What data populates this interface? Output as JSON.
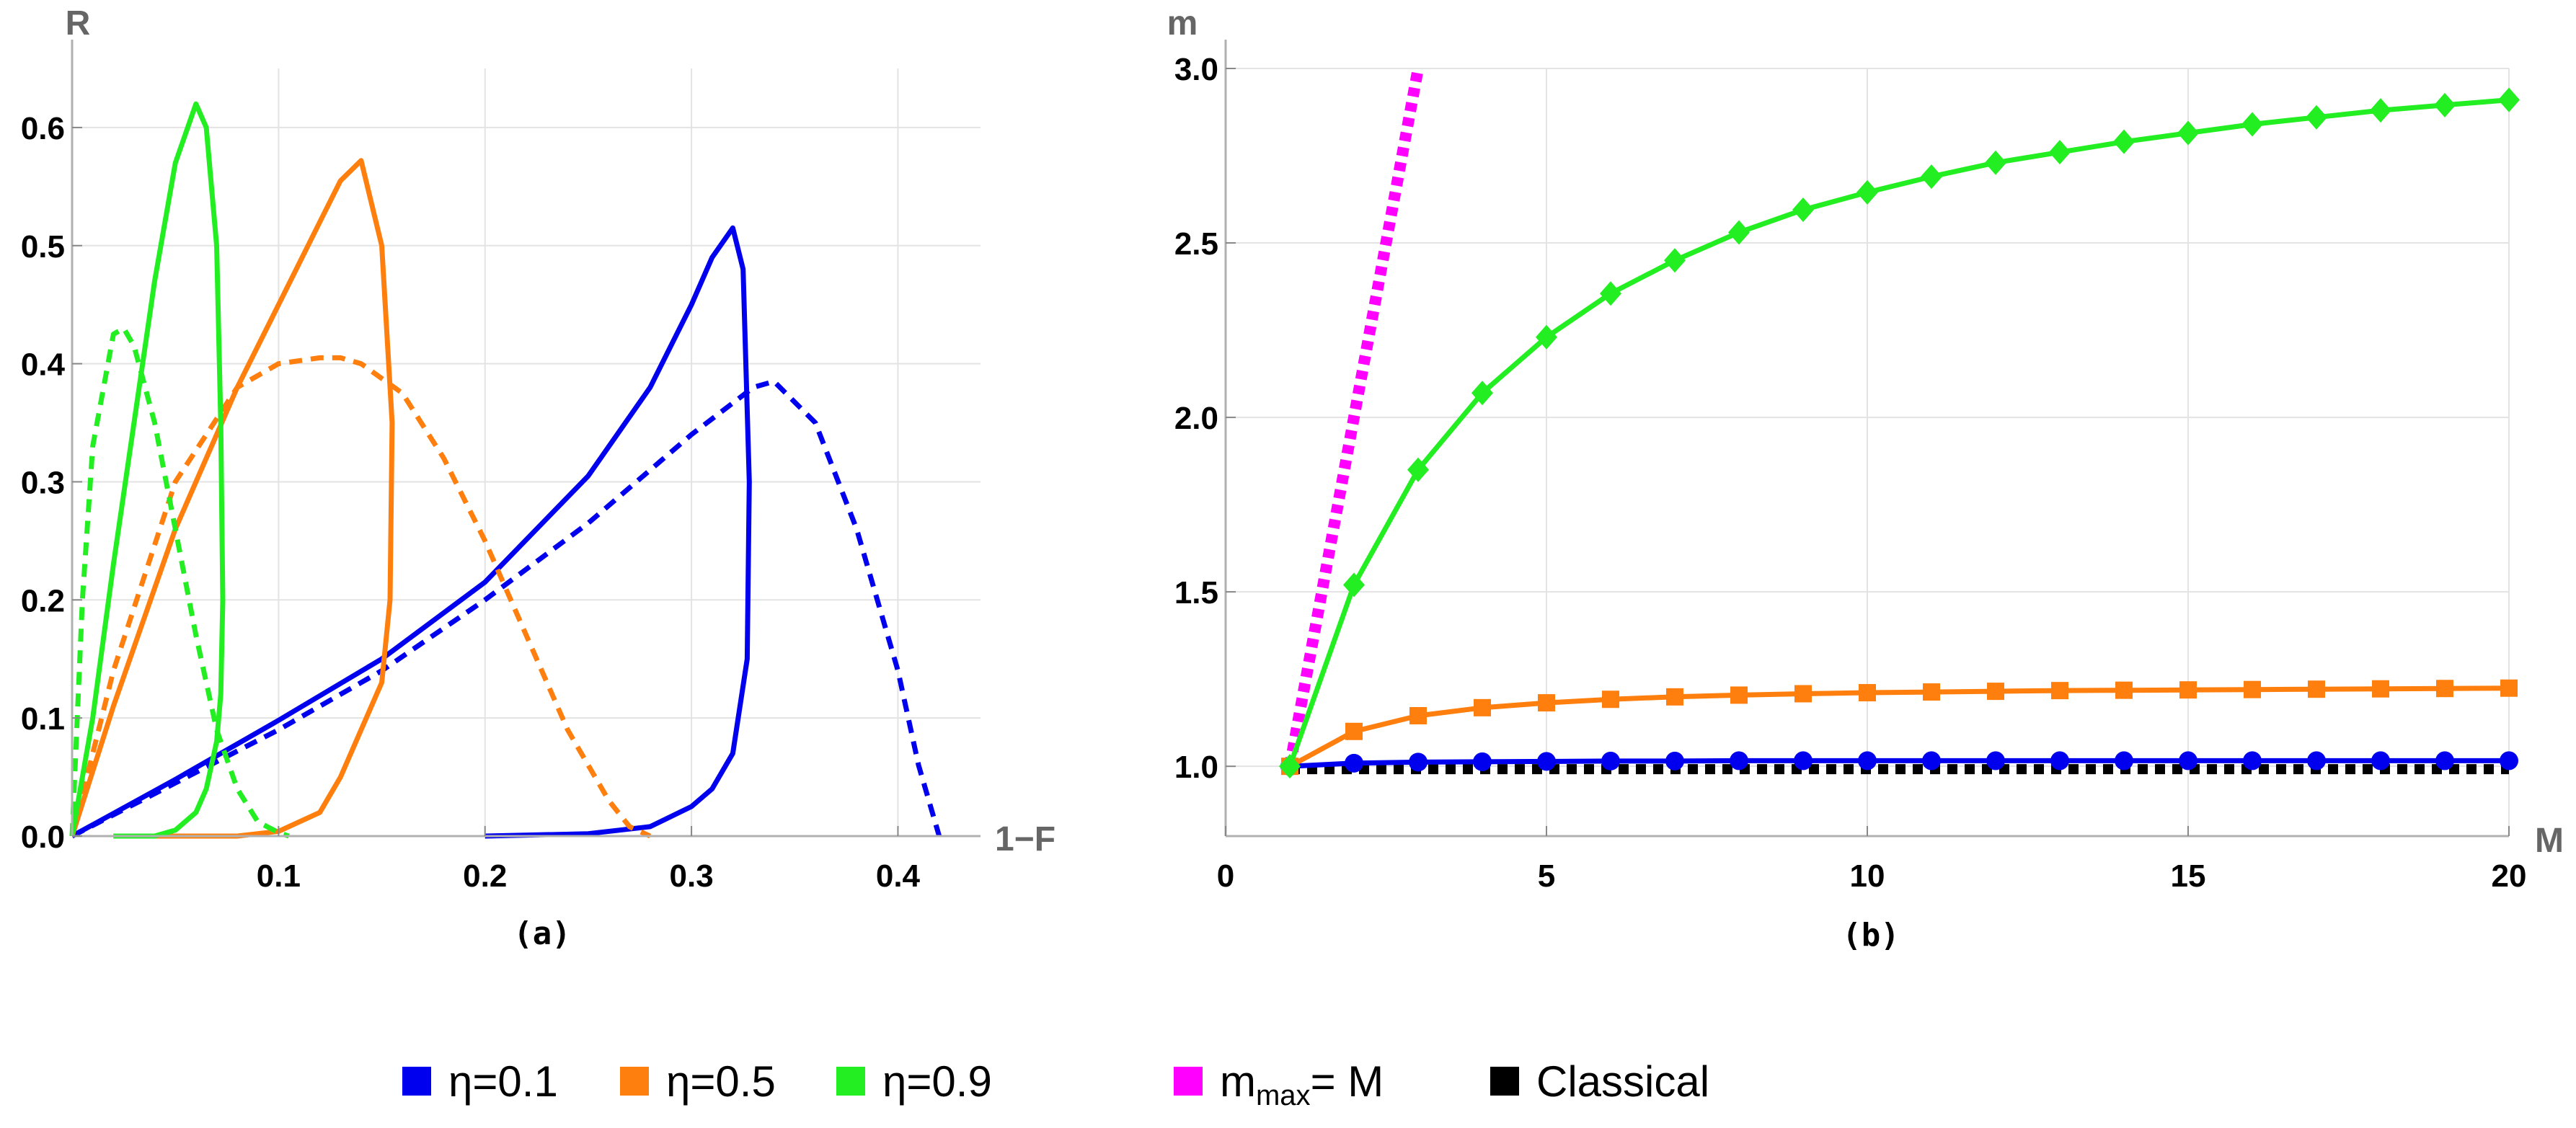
{
  "chart_data": [
    {
      "type": "line",
      "panel": "(a)",
      "xlabel": "1−F",
      "ylabel": "R",
      "xlim": [
        0,
        0.44
      ],
      "ylim": [
        0,
        0.65
      ],
      "xticks": [
        "0.1",
        "0.2",
        "0.3",
        "0.4"
      ],
      "xtick_values": [
        0.1,
        0.2,
        0.3,
        0.4
      ],
      "yticks": [
        "0.0",
        "0.1",
        "0.2",
        "0.3",
        "0.4",
        "0.5",
        "0.6"
      ],
      "ytick_values": [
        0,
        0.1,
        0.2,
        0.3,
        0.4,
        0.5,
        0.6
      ],
      "grid": true,
      "series": [
        {
          "name": "η=0.1 (solid)",
          "color": "#0000ee",
          "style": "solid",
          "x": [
            0,
            0.05,
            0.1,
            0.15,
            0.2,
            0.25,
            0.28,
            0.3,
            0.31,
            0.32,
            0.325,
            0.328,
            0.327,
            0.32,
            0.31,
            0.3,
            0.28,
            0.25,
            0.2
          ],
          "y": [
            0,
            0.048,
            0.098,
            0.15,
            0.215,
            0.305,
            0.38,
            0.45,
            0.49,
            0.515,
            0.48,
            0.3,
            0.15,
            0.07,
            0.04,
            0.025,
            0.008,
            0.002,
            0
          ]
        },
        {
          "name": "η=0.1 (dashed)",
          "color": "#0000ee",
          "style": "dashed",
          "x": [
            0,
            0.05,
            0.1,
            0.15,
            0.2,
            0.25,
            0.3,
            0.33,
            0.34,
            0.36,
            0.38,
            0.4,
            0.41,
            0.42
          ],
          "y": [
            0,
            0.045,
            0.09,
            0.14,
            0.2,
            0.265,
            0.34,
            0.38,
            0.385,
            0.35,
            0.26,
            0.14,
            0.06,
            0
          ]
        },
        {
          "name": "η=0.5 (solid)",
          "color": "#ff7f0e",
          "style": "solid",
          "x": [
            0,
            0.02,
            0.05,
            0.08,
            0.1,
            0.12,
            0.13,
            0.14,
            0.15,
            0.155,
            0.154,
            0.15,
            0.14,
            0.13,
            0.12,
            0.1,
            0.08,
            0.05,
            0.02
          ],
          "y": [
            0,
            0.11,
            0.26,
            0.38,
            0.45,
            0.52,
            0.555,
            0.572,
            0.5,
            0.35,
            0.2,
            0.13,
            0.09,
            0.05,
            0.02,
            0.004,
            0,
            0,
            0
          ]
        },
        {
          "name": "η=0.5 (dashed)",
          "color": "#ff7f0e",
          "style": "dashed",
          "x": [
            0,
            0.02,
            0.05,
            0.08,
            0.1,
            0.12,
            0.13,
            0.14,
            0.16,
            0.18,
            0.2,
            0.22,
            0.24,
            0.26,
            0.27,
            0.28
          ],
          "y": [
            0,
            0.14,
            0.3,
            0.38,
            0.4,
            0.405,
            0.405,
            0.4,
            0.375,
            0.32,
            0.25,
            0.17,
            0.09,
            0.03,
            0.008,
            0
          ]
        },
        {
          "name": "η=0.9 (solid)",
          "color": "#22ee22",
          "style": "solid",
          "x": [
            0,
            0.01,
            0.02,
            0.03,
            0.04,
            0.05,
            0.06,
            0.065,
            0.07,
            0.072,
            0.073,
            0.072,
            0.07,
            0.065,
            0.06,
            0.05,
            0.04,
            0.03,
            0.02
          ],
          "y": [
            0,
            0.1,
            0.23,
            0.35,
            0.47,
            0.57,
            0.62,
            0.6,
            0.5,
            0.35,
            0.2,
            0.12,
            0.08,
            0.04,
            0.02,
            0.005,
            0,
            0,
            0
          ]
        },
        {
          "name": "η=0.9 (dashed)",
          "color": "#22ee22",
          "style": "dashed",
          "x": [
            0,
            0.005,
            0.01,
            0.02,
            0.025,
            0.03,
            0.04,
            0.05,
            0.06,
            0.07,
            0.08,
            0.09,
            0.1,
            0.105
          ],
          "y": [
            0,
            0.2,
            0.33,
            0.425,
            0.43,
            0.415,
            0.35,
            0.26,
            0.17,
            0.09,
            0.04,
            0.012,
            0.003,
            0
          ]
        }
      ]
    },
    {
      "type": "line",
      "panel": "(b)",
      "xlabel": "M",
      "ylabel": "m",
      "xlim": [
        0,
        20
      ],
      "ylim": [
        0.8,
        3.0
      ],
      "xticks": [
        "0",
        "5",
        "10",
        "15",
        "20"
      ],
      "xtick_values": [
        0,
        5,
        10,
        15,
        20
      ],
      "yticks": [
        "1.0",
        "1.5",
        "2.0",
        "2.5",
        "3.0"
      ],
      "ytick_values": [
        1.0,
        1.5,
        2.0,
        2.5,
        3.0
      ],
      "grid": true,
      "series": [
        {
          "name": "m_max = M",
          "color": "#ff00ff",
          "style": "dotted",
          "marker": "none",
          "x": [
            1,
            3
          ],
          "y": [
            1.0,
            3.0
          ]
        },
        {
          "name": "Classical",
          "color": "#000000",
          "style": "dotted",
          "marker": "none",
          "x": [
            1,
            20
          ],
          "y": [
            0.992,
            0.992
          ]
        },
        {
          "name": "η=0.1",
          "color": "#0000ee",
          "style": "solid",
          "marker": "circle",
          "x": [
            1,
            2,
            3,
            4,
            5,
            6,
            7,
            8,
            9,
            10,
            11,
            12,
            13,
            14,
            15,
            16,
            17,
            18,
            19,
            20
          ],
          "y": [
            1.0,
            1.009,
            1.012,
            1.013,
            1.014,
            1.015,
            1.015,
            1.016,
            1.016,
            1.016,
            1.016,
            1.016,
            1.016,
            1.016,
            1.016,
            1.016,
            1.016,
            1.016,
            1.016,
            1.016
          ]
        },
        {
          "name": "η=0.5",
          "color": "#ff7f0e",
          "style": "solid",
          "marker": "square",
          "x": [
            1,
            2,
            3,
            4,
            5,
            6,
            7,
            8,
            9,
            10,
            11,
            12,
            13,
            14,
            15,
            16,
            17,
            18,
            19,
            20
          ],
          "y": [
            1.0,
            1.1,
            1.145,
            1.168,
            1.182,
            1.192,
            1.199,
            1.204,
            1.208,
            1.211,
            1.213,
            1.215,
            1.217,
            1.218,
            1.219,
            1.22,
            1.221,
            1.222,
            1.223,
            1.224
          ]
        },
        {
          "name": "η=0.9",
          "color": "#22ee22",
          "style": "solid",
          "marker": "diamond",
          "x": [
            1,
            2,
            3,
            4,
            5,
            6,
            7,
            8,
            9,
            10,
            11,
            12,
            13,
            14,
            15,
            16,
            17,
            18,
            19,
            20
          ],
          "y": [
            1.0,
            1.52,
            1.85,
            2.07,
            2.23,
            2.355,
            2.45,
            2.53,
            2.595,
            2.645,
            2.69,
            2.73,
            2.76,
            2.79,
            2.815,
            2.84,
            2.86,
            2.88,
            2.895,
            2.91
          ]
        }
      ]
    }
  ],
  "legend": [
    {
      "label": "η=0.1",
      "color": "#0000ee"
    },
    {
      "label": "η=0.5",
      "color": "#ff7f0e"
    },
    {
      "label": "η=0.9",
      "color": "#22ee22"
    },
    {
      "label": "m",
      "sub": "max",
      "rest": "= M",
      "color": "#ff00ff"
    },
    {
      "label": "Classical",
      "color": "#000000"
    }
  ]
}
